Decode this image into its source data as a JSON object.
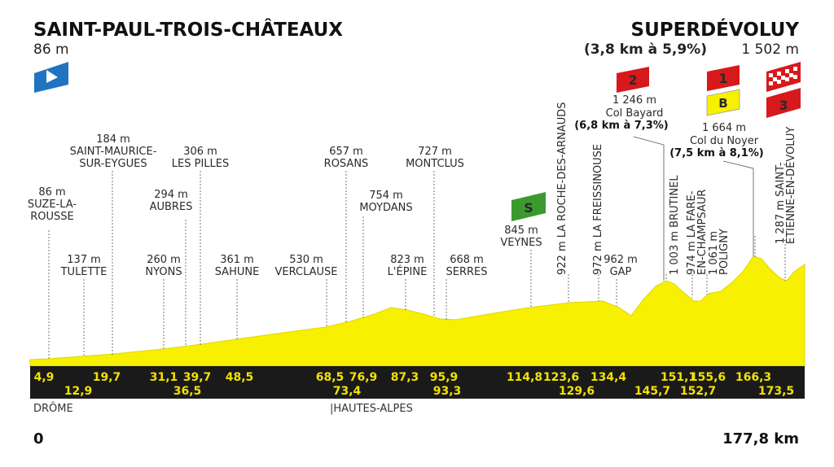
{
  "start": {
    "name": "SAINT-PAUL-TROIS-CHÂTEAUX",
    "altitude": "86 m"
  },
  "finish": {
    "name": "SUPERDÉVOLUY",
    "climb": "(3,8 km à 5,9%)",
    "altitude": "1 502 m"
  },
  "axis": {
    "start": "0",
    "end": "177,8 km"
  },
  "departments": [
    {
      "name": "DRÔME"
    },
    {
      "name": "|HAUTES-ALPES"
    }
  ],
  "waypoints": [
    {
      "id": "suze",
      "lines": [
        "86 m",
        "SUZE-LA-",
        "ROUSSE"
      ]
    },
    {
      "id": "tulette",
      "lines": [
        "137 m",
        "TULETTE"
      ]
    },
    {
      "id": "saint-maurice",
      "lines": [
        "184 m",
        "SAINT-MAURICE-",
        "SUR-EYGUES"
      ]
    },
    {
      "id": "nyons",
      "lines": [
        "260 m",
        "NYONS"
      ]
    },
    {
      "id": "aubres",
      "lines": [
        "294 m",
        "AUBRES"
      ]
    },
    {
      "id": "les-pilles",
      "lines": [
        "306 m",
        "LES PILLES"
      ]
    },
    {
      "id": "sahune",
      "lines": [
        "361 m",
        "SAHUNE"
      ]
    },
    {
      "id": "verclause",
      "lines": [
        "530 m",
        "VERCLAUSE"
      ]
    },
    {
      "id": "rosans",
      "lines": [
        "657 m",
        "ROSANS"
      ]
    },
    {
      "id": "moydans",
      "lines": [
        "754 m",
        "MOYDANS"
      ]
    },
    {
      "id": "lepine",
      "lines": [
        "823 m",
        "L'ÉPINE"
      ]
    },
    {
      "id": "montclus",
      "lines": [
        "727 m",
        "MONTCLUS"
      ]
    },
    {
      "id": "serres",
      "lines": [
        "668 m",
        "SERRES"
      ]
    },
    {
      "id": "veynes",
      "lines": [
        "845 m",
        "VEYNES"
      ]
    },
    {
      "id": "gap",
      "lines": [
        "962 m",
        "GAP"
      ]
    }
  ],
  "vertical_waypoints": [
    {
      "id": "roche",
      "text": "922 m LA ROCHE-DES-ARNAUDS"
    },
    {
      "id": "freissinouse",
      "text": "972 m LA FREISSINOUSE"
    },
    {
      "id": "brutinel",
      "text": "1 003 m BRUTINEL"
    },
    {
      "id": "fare1",
      "text": "974 m LA FARE-"
    },
    {
      "id": "fare2",
      "text": "EN-CHAMPSAUR"
    },
    {
      "id": "poligny1",
      "text": "1 061 m"
    },
    {
      "id": "poligny2",
      "text": "POLIGNY"
    },
    {
      "id": "stet1",
      "text": "1 287 m SAINT-"
    },
    {
      "id": "stet2",
      "text": "ÉTIENNE-EN-DÉVOLUY"
    }
  ],
  "climbs": [
    {
      "id": "col-bayard",
      "lines": [
        "1 246 m",
        "Col Bayard"
      ],
      "detail": "(6,8 km à 7,3%)",
      "category": "2"
    },
    {
      "id": "col-du-noyer",
      "lines": [
        "1 664 m",
        "Col du Noyer"
      ],
      "detail": "(7,5 km à 8,1%)",
      "category": "1"
    }
  ],
  "badges": {
    "sprint": "S",
    "bonus": "B",
    "finish_category": "3"
  },
  "km_marks_top": [
    "4,9",
    "19,7",
    "31,1",
    "39,7",
    "48,5",
    "68,5",
    "76,9",
    "87,3",
    "95,9",
    "114,8",
    "123,6",
    "134,4",
    "151,1",
    "155,6",
    "166,3"
  ],
  "km_marks_bottom": [
    "12,9",
    "36,5",
    "73,4",
    "93,3",
    "129,6",
    "145,7",
    "152,7",
    "173,5"
  ],
  "colors": {
    "profile": "#f7f000",
    "band": "#1a1a1a",
    "kmtext": "#f2e200",
    "red": "#d7191c",
    "green": "#3a9a2e",
    "blue": "#1f74c2"
  }
}
